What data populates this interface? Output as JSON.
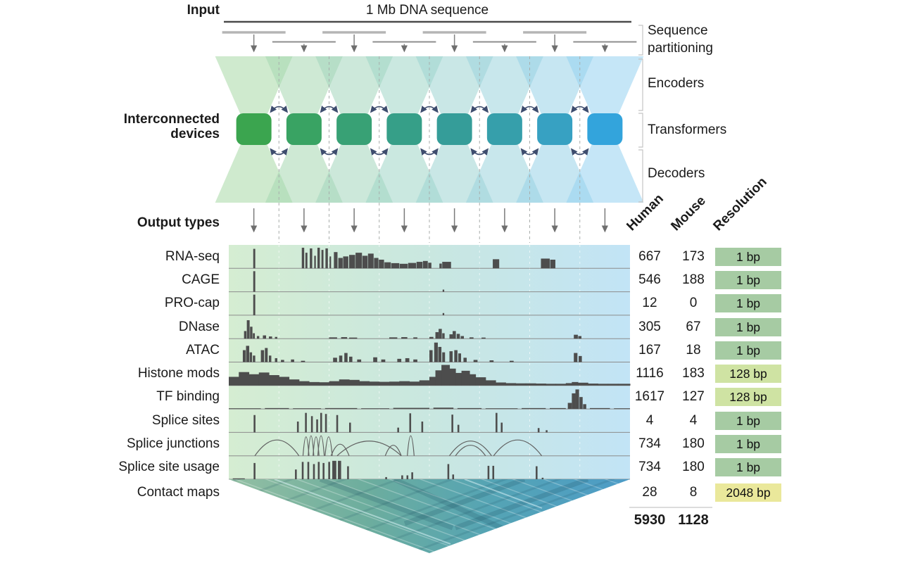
{
  "figure": {
    "input_label": "Input",
    "sequence_label": "1 Mb DNA sequence",
    "interconnected_label": "Interconnected devices",
    "output_types_label": "Output types",
    "num_devices": 8,
    "stages": {
      "partitioning": "Sequence partitioning",
      "encoders": "Encoders",
      "transformers": "Transformers",
      "decoders": "Decoders"
    }
  },
  "table": {
    "columns": [
      "Human",
      "Mouse",
      "Resolution"
    ],
    "totals": {
      "human": "5930",
      "mouse": "1128"
    }
  },
  "colors": {
    "square_colors": [
      "#3ba54f",
      "#39a363",
      "#38a175",
      "#369f88",
      "#359d99",
      "#369fab",
      "#37a1c2",
      "#33a4dc"
    ],
    "triangle_colors": [
      "#a8d8a6",
      "#a5d7b1",
      "#a2d6bc",
      "#9fd5c7",
      "#9dd4d2",
      "#9ad3dd",
      "#98d2e7",
      "#96d1f1"
    ],
    "track_bg_left": "#d5edd2",
    "track_bg_mid": "#c9e7e0",
    "track_bg_right": "#c2e4f6",
    "bar": "#4d4d4d",
    "baseline": "#8c8c8c",
    "arrow_navy": "#3e4d6e",
    "arrow_gray": "#6e6e6e",
    "res_1bp": "#a6cba3",
    "res_128bp": "#cfe3a3",
    "res_2048bp": "#eae89b",
    "contact_gradient": [
      "#93bfa3",
      "#6cad9e",
      "#55a4b4",
      "#4d9cc7"
    ]
  },
  "tracks": [
    {
      "name": "RNA-seq",
      "human": "667",
      "mouse": "173",
      "resolution": "1 bp",
      "res_key": "res_1bp",
      "signal": {
        "type": "bars",
        "bars": [
          [
            0.061,
            0.9,
            0.005
          ],
          [
            0.182,
            0.95,
            0.006
          ],
          [
            0.191,
            0.72,
            0.005
          ],
          [
            0.202,
            0.92,
            0.006
          ],
          [
            0.213,
            0.58,
            0.004
          ],
          [
            0.221,
            0.95,
            0.006
          ],
          [
            0.231,
            0.85,
            0.005
          ],
          [
            0.241,
            0.92,
            0.006
          ],
          [
            0.251,
            0.55,
            0.004
          ],
          [
            0.262,
            0.75,
            0.009
          ],
          [
            0.273,
            0.48,
            0.011
          ],
          [
            0.285,
            0.55,
            0.013
          ],
          [
            0.3,
            0.62,
            0.015
          ],
          [
            0.316,
            0.72,
            0.016
          ],
          [
            0.333,
            0.58,
            0.013
          ],
          [
            0.347,
            0.68,
            0.014
          ],
          [
            0.362,
            0.48,
            0.011
          ],
          [
            0.374,
            0.4,
            0.013
          ],
          [
            0.388,
            0.28,
            0.016
          ],
          [
            0.405,
            0.24,
            0.02
          ],
          [
            0.426,
            0.21,
            0.02
          ],
          [
            0.447,
            0.25,
            0.02
          ],
          [
            0.468,
            0.3,
            0.015
          ],
          [
            0.484,
            0.34,
            0.012
          ],
          [
            0.497,
            0.26,
            0.008
          ],
          [
            0.525,
            0.22,
            0.006
          ],
          [
            0.532,
            0.3,
            0.022
          ],
          [
            0.658,
            0.42,
            0.016
          ],
          [
            0.778,
            0.45,
            0.022
          ],
          [
            0.801,
            0.4,
            0.013
          ]
        ]
      }
    },
    {
      "name": "CAGE",
      "human": "546",
      "mouse": "188",
      "resolution": "1 bp",
      "res_key": "res_1bp",
      "signal": {
        "type": "bars",
        "bars": [
          [
            0.061,
            0.95,
            0.005
          ],
          [
            0.533,
            0.1,
            0.004
          ]
        ]
      }
    },
    {
      "name": "PRO-cap",
      "human": "12",
      "mouse": "0",
      "resolution": "1 bp",
      "res_key": "res_1bp",
      "signal": {
        "type": "bars",
        "bars": [
          [
            0.061,
            0.95,
            0.005
          ],
          [
            0.533,
            0.1,
            0.004
          ]
        ]
      }
    },
    {
      "name": "DNase",
      "human": "305",
      "mouse": "67",
      "resolution": "1 bp",
      "res_key": "res_1bp",
      "signal": {
        "type": "bars",
        "bars": [
          [
            0.038,
            0.35,
            0.006
          ],
          [
            0.045,
            0.85,
            0.007
          ],
          [
            0.053,
            0.55,
            0.006
          ],
          [
            0.06,
            0.25,
            0.005
          ],
          [
            0.07,
            0.12,
            0.006
          ],
          [
            0.085,
            0.15,
            0.008
          ],
          [
            0.1,
            0.1,
            0.008
          ],
          [
            0.115,
            0.08,
            0.006
          ],
          [
            0.25,
            0.06,
            0.02
          ],
          [
            0.28,
            0.07,
            0.015
          ],
          [
            0.3,
            0.05,
            0.02
          ],
          [
            0.4,
            0.06,
            0.02
          ],
          [
            0.43,
            0.07,
            0.015
          ],
          [
            0.46,
            0.06,
            0.01
          ],
          [
            0.5,
            0.08,
            0.01
          ],
          [
            0.515,
            0.3,
            0.008
          ],
          [
            0.523,
            0.45,
            0.008
          ],
          [
            0.532,
            0.25,
            0.006
          ],
          [
            0.55,
            0.2,
            0.008
          ],
          [
            0.558,
            0.35,
            0.008
          ],
          [
            0.568,
            0.22,
            0.008
          ],
          [
            0.578,
            0.12,
            0.008
          ],
          [
            0.6,
            0.06,
            0.01
          ],
          [
            0.63,
            0.05,
            0.01
          ],
          [
            0.86,
            0.18,
            0.01
          ],
          [
            0.871,
            0.12,
            0.008
          ]
        ]
      }
    },
    {
      "name": "ATAC",
      "human": "167",
      "mouse": "18",
      "resolution": "1 bp",
      "res_key": "res_1bp",
      "signal": {
        "type": "bars",
        "bars": [
          [
            0.035,
            0.55,
            0.007
          ],
          [
            0.043,
            0.75,
            0.008
          ],
          [
            0.052,
            0.45,
            0.006
          ],
          [
            0.06,
            0.3,
            0.006
          ],
          [
            0.08,
            0.55,
            0.008
          ],
          [
            0.09,
            0.65,
            0.007
          ],
          [
            0.1,
            0.3,
            0.006
          ],
          [
            0.115,
            0.18,
            0.006
          ],
          [
            0.13,
            0.1,
            0.008
          ],
          [
            0.155,
            0.12,
            0.008
          ],
          [
            0.18,
            0.06,
            0.01
          ],
          [
            0.26,
            0.2,
            0.01
          ],
          [
            0.275,
            0.3,
            0.008
          ],
          [
            0.288,
            0.42,
            0.008
          ],
          [
            0.3,
            0.25,
            0.008
          ],
          [
            0.32,
            0.12,
            0.01
          ],
          [
            0.36,
            0.22,
            0.01
          ],
          [
            0.38,
            0.12,
            0.01
          ],
          [
            0.42,
            0.15,
            0.01
          ],
          [
            0.44,
            0.18,
            0.01
          ],
          [
            0.46,
            0.12,
            0.01
          ],
          [
            0.5,
            0.55,
            0.008
          ],
          [
            0.512,
            0.9,
            0.009
          ],
          [
            0.522,
            0.7,
            0.008
          ],
          [
            0.532,
            0.45,
            0.007
          ],
          [
            0.55,
            0.5,
            0.008
          ],
          [
            0.562,
            0.55,
            0.008
          ],
          [
            0.572,
            0.4,
            0.007
          ],
          [
            0.585,
            0.2,
            0.008
          ],
          [
            0.61,
            0.1,
            0.01
          ],
          [
            0.65,
            0.08,
            0.01
          ],
          [
            0.7,
            0.06,
            0.01
          ],
          [
            0.86,
            0.42,
            0.009
          ],
          [
            0.872,
            0.28,
            0.008
          ]
        ]
      }
    },
    {
      "name": "Histone mods",
      "human": "1116",
      "mouse": "183",
      "resolution": "128 bp",
      "res_key": "res_128bp",
      "signal": {
        "type": "bars",
        "bars": [
          [
            0.0,
            0.4,
            0.026
          ],
          [
            0.025,
            0.62,
            0.026
          ],
          [
            0.05,
            0.52,
            0.026
          ],
          [
            0.075,
            0.6,
            0.026
          ],
          [
            0.1,
            0.48,
            0.026
          ],
          [
            0.125,
            0.4,
            0.026
          ],
          [
            0.15,
            0.28,
            0.026
          ],
          [
            0.175,
            0.2,
            0.026
          ],
          [
            0.2,
            0.16,
            0.026
          ],
          [
            0.225,
            0.15,
            0.026
          ],
          [
            0.25,
            0.2,
            0.026
          ],
          [
            0.275,
            0.28,
            0.026
          ],
          [
            0.3,
            0.26,
            0.026
          ],
          [
            0.325,
            0.2,
            0.026
          ],
          [
            0.35,
            0.18,
            0.026
          ],
          [
            0.375,
            0.17,
            0.026
          ],
          [
            0.4,
            0.18,
            0.026
          ],
          [
            0.425,
            0.2,
            0.026
          ],
          [
            0.45,
            0.18,
            0.026
          ],
          [
            0.475,
            0.24,
            0.026
          ],
          [
            0.5,
            0.4,
            0.016
          ],
          [
            0.515,
            0.7,
            0.016
          ],
          [
            0.53,
            0.95,
            0.021
          ],
          [
            0.55,
            0.78,
            0.016
          ],
          [
            0.565,
            0.58,
            0.016
          ],
          [
            0.58,
            0.68,
            0.021
          ],
          [
            0.6,
            0.52,
            0.016
          ],
          [
            0.615,
            0.38,
            0.026
          ],
          [
            0.64,
            0.24,
            0.026
          ],
          [
            0.665,
            0.14,
            0.026
          ],
          [
            0.69,
            0.11,
            0.026
          ],
          [
            0.715,
            0.1,
            0.026
          ],
          [
            0.74,
            0.1,
            0.026
          ],
          [
            0.765,
            0.09,
            0.026
          ],
          [
            0.79,
            0.08,
            0.026
          ],
          [
            0.815,
            0.08,
            0.026
          ],
          [
            0.84,
            0.11,
            0.016
          ],
          [
            0.855,
            0.16,
            0.016
          ],
          [
            0.87,
            0.13,
            0.026
          ],
          [
            0.895,
            0.09,
            0.026
          ],
          [
            0.92,
            0.08,
            0.026
          ],
          [
            0.945,
            0.08,
            0.026
          ],
          [
            0.97,
            0.08,
            0.031
          ]
        ]
      }
    },
    {
      "name": "TF binding",
      "human": "1617",
      "mouse": "127",
      "resolution": "128 bp",
      "res_key": "res_128bp",
      "signal": {
        "type": "bars",
        "bars": [
          [
            0.0,
            0.03,
            0.08
          ],
          [
            0.09,
            0.04,
            0.06
          ],
          [
            0.16,
            0.03,
            0.07
          ],
          [
            0.24,
            0.04,
            0.08
          ],
          [
            0.33,
            0.03,
            0.07
          ],
          [
            0.41,
            0.05,
            0.09
          ],
          [
            0.51,
            0.06,
            0.05
          ],
          [
            0.57,
            0.04,
            0.06
          ],
          [
            0.64,
            0.03,
            0.08
          ],
          [
            0.73,
            0.04,
            0.06
          ],
          [
            0.8,
            0.04,
            0.04
          ],
          [
            0.845,
            0.28,
            0.01
          ],
          [
            0.855,
            0.72,
            0.009
          ],
          [
            0.864,
            0.9,
            0.009
          ],
          [
            0.874,
            0.55,
            0.008
          ],
          [
            0.883,
            0.22,
            0.008
          ],
          [
            0.9,
            0.04,
            0.05
          ],
          [
            0.96,
            0.03,
            0.04
          ]
        ]
      }
    },
    {
      "name": "Splice sites",
      "human": "4",
      "mouse": "4",
      "resolution": "1 bp",
      "res_key": "res_1bp",
      "signal": {
        "type": "bars",
        "bars": [
          [
            0.062,
            0.8
          ],
          [
            0.17,
            0.5
          ],
          [
            0.19,
            0.9
          ],
          [
            0.205,
            0.75
          ],
          [
            0.218,
            0.6
          ],
          [
            0.228,
            0.9
          ],
          [
            0.24,
            0.85
          ],
          [
            0.268,
            0.8
          ],
          [
            0.3,
            0.45
          ],
          [
            0.42,
            0.22
          ],
          [
            0.45,
            0.88
          ],
          [
            0.48,
            0.5
          ],
          [
            0.555,
            0.82
          ],
          [
            0.57,
            0.35
          ],
          [
            0.665,
            0.9
          ],
          [
            0.678,
            0.45
          ],
          [
            0.77,
            0.2
          ],
          [
            0.79,
            0.1
          ]
        ]
      }
    },
    {
      "name": "Splice junctions",
      "human": "734",
      "mouse": "180",
      "resolution": "1 bp",
      "res_key": "res_1bp",
      "signal": {
        "type": "arcs",
        "arcs": [
          [
            0.065,
            0.175,
            0.75
          ],
          [
            0.185,
            0.2,
            0.9
          ],
          [
            0.198,
            0.212,
            0.95
          ],
          [
            0.21,
            0.225,
            0.9
          ],
          [
            0.222,
            0.238,
            0.95
          ],
          [
            0.24,
            0.258,
            0.9
          ],
          [
            0.255,
            0.3,
            0.55
          ],
          [
            0.27,
            0.43,
            0.7
          ],
          [
            0.39,
            0.43,
            0.5
          ],
          [
            0.445,
            0.462,
            0.95
          ],
          [
            0.55,
            0.655,
            0.7
          ],
          [
            0.565,
            0.64,
            0.5
          ],
          [
            0.66,
            0.78,
            0.75
          ]
        ]
      }
    },
    {
      "name": "Splice site usage",
      "human": "734",
      "mouse": "180",
      "resolution": "1 bp",
      "res_key": "res_1bp",
      "signal": {
        "type": "bars",
        "bars": [
          [
            0.01,
            0.04,
            0.03
          ],
          [
            0.062,
            0.75
          ],
          [
            0.165,
            0.45
          ],
          [
            0.182,
            0.8
          ],
          [
            0.196,
            0.8
          ],
          [
            0.21,
            0.7
          ],
          [
            0.222,
            0.8
          ],
          [
            0.234,
            0.75
          ],
          [
            0.248,
            0.8
          ],
          [
            0.258,
            0.85,
            0.01
          ],
          [
            0.272,
            0.85,
            0.008
          ],
          [
            0.295,
            0.6
          ],
          [
            0.39,
            0.1
          ],
          [
            0.43,
            0.18
          ],
          [
            0.443,
            0.18
          ],
          [
            0.455,
            0.32
          ],
          [
            0.545,
            0.7
          ],
          [
            0.557,
            0.22
          ],
          [
            0.645,
            0.62
          ],
          [
            0.657,
            0.62
          ],
          [
            0.765,
            0.6
          ],
          [
            0.78,
            0.07
          ]
        ]
      }
    },
    {
      "name": "Contact maps",
      "human": "28",
      "mouse": "8",
      "resolution": "2048 bp",
      "res_key": "res_2048bp",
      "signal": {
        "type": "contact_map"
      }
    }
  ]
}
